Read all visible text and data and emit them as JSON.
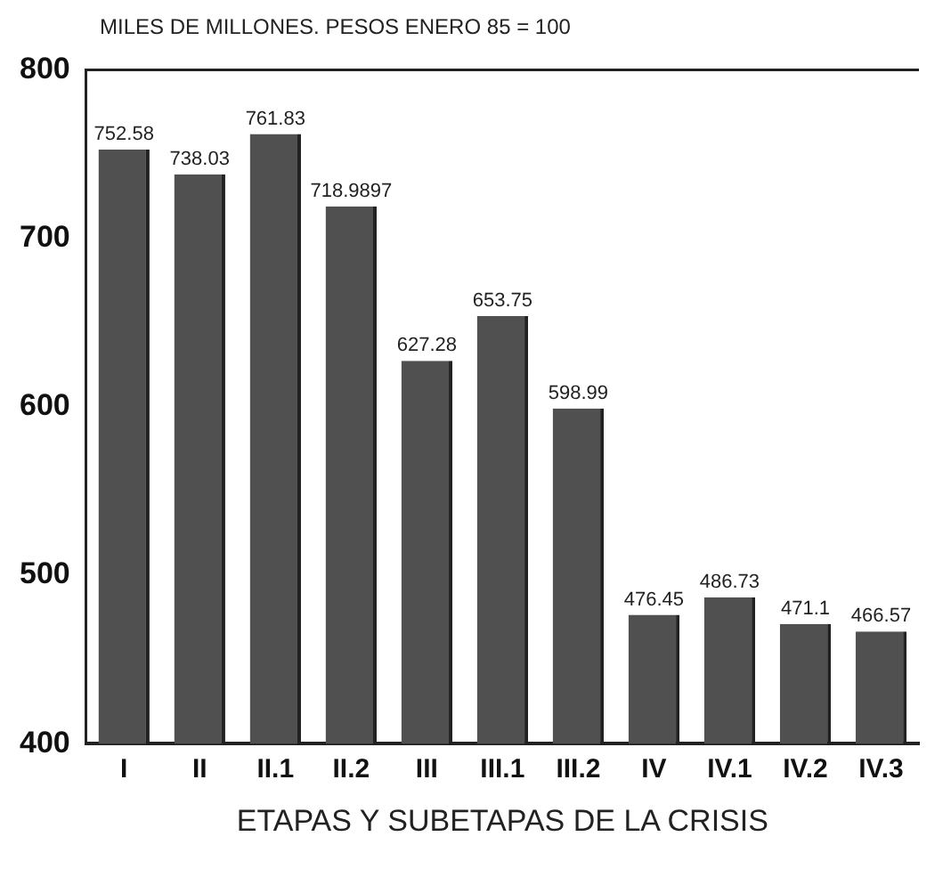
{
  "chart_data": {
    "type": "bar",
    "title": "MILES DE MILLONES. PESOS ENERO 85 = 100",
    "xlabel": "ETAPAS Y SUBETAPAS DE LA CRISIS",
    "categories": [
      "I",
      "II",
      "II.1",
      "II.2",
      "III",
      "III.1",
      "III.2",
      "IV",
      "IV.1",
      "IV.2",
      "IV.3"
    ],
    "values": [
      752.58,
      738.03,
      761.83,
      718.9897,
      627.28,
      653.75,
      598.99,
      476.45,
      486.73,
      471.1,
      466.57
    ],
    "color": "#505050",
    "ylim": [
      400,
      800
    ],
    "yticks": [
      400,
      500,
      600,
      700,
      800
    ],
    "grid": false,
    "data_labels": true
  }
}
